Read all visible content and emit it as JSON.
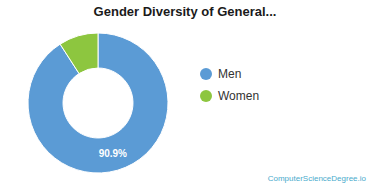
{
  "chart_data": {
    "type": "donut",
    "title": "Gender Diversity of General...",
    "categories": [
      "Men",
      "Women"
    ],
    "values": [
      90.9,
      9.1
    ],
    "colors": [
      "#5b9bd5",
      "#8dc63f"
    ],
    "data_labels": true,
    "value_labels": [
      "90.9%",
      null
    ],
    "legend": "right",
    "annotations": [
      "ComputerScienceDegree.io"
    ]
  }
}
